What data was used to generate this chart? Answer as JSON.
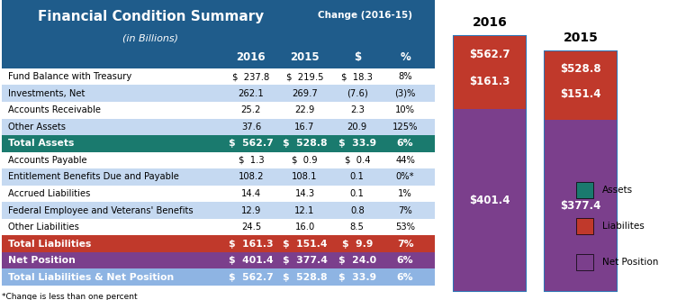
{
  "title": "Financial Condition Summary",
  "subtitle": "(in Billions)",
  "change_header": "Change (2016-15)",
  "columns": [
    "2016",
    "2015",
    "$",
    "%"
  ],
  "rows": [
    {
      "label": "Fund Balance with Treasury",
      "vals": [
        "$  237.8",
        "$  219.5",
        "$  18.3",
        "8%"
      ],
      "bold": false,
      "bg": "white"
    },
    {
      "label": "Investments, Net",
      "vals": [
        "262.1",
        "269.7",
        "(7.6)",
        "(3)%"
      ],
      "bold": false,
      "bg": "light"
    },
    {
      "label": "Accounts Receivable",
      "vals": [
        "25.2",
        "22.9",
        "2.3",
        "10%"
      ],
      "bold": false,
      "bg": "white"
    },
    {
      "label": "Other Assets",
      "vals": [
        "37.6",
        "16.7",
        "20.9",
        "125%"
      ],
      "bold": false,
      "bg": "light"
    },
    {
      "label": "Total Assets",
      "vals": [
        "$  562.7",
        "$  528.8",
        "$  33.9",
        "6%"
      ],
      "bold": true,
      "bg": "teal"
    },
    {
      "label": "Accounts Payable",
      "vals": [
        "$  1.3",
        "$  0.9",
        "$  0.4",
        "44%"
      ],
      "bold": false,
      "bg": "white"
    },
    {
      "label": "Entitlement Benefits Due and Payable",
      "vals": [
        "108.2",
        "108.1",
        "0.1",
        "0%*"
      ],
      "bold": false,
      "bg": "light"
    },
    {
      "label": "Accrued Liabilities",
      "vals": [
        "14.4",
        "14.3",
        "0.1",
        "1%"
      ],
      "bold": false,
      "bg": "white"
    },
    {
      "label": "Federal Employee and Veterans' Benefits",
      "vals": [
        "12.9",
        "12.1",
        "0.8",
        "7%"
      ],
      "bold": false,
      "bg": "light"
    },
    {
      "label": "Other Liabilities",
      "vals": [
        "24.5",
        "16.0",
        "8.5",
        "53%"
      ],
      "bold": false,
      "bg": "white"
    },
    {
      "label": "Total Liabilities",
      "vals": [
        "$  161.3",
        "$  151.4",
        "$  9.9",
        "7%"
      ],
      "bold": true,
      "bg": "red"
    },
    {
      "label": "Net Position",
      "vals": [
        "$  401.4",
        "$  377.4",
        "$  24.0",
        "6%"
      ],
      "bold": true,
      "bg": "purple"
    },
    {
      "label": "Total Liabilities & Net Position",
      "vals": [
        "$  562.7",
        "$  528.8",
        "$  33.9",
        "6%"
      ],
      "bold": true,
      "bg": "light_blue"
    }
  ],
  "footnote": "*Change is less than one percent",
  "header_bg": "#1F5C8B",
  "header_fg": "#FFFFFF",
  "teal_bg": "#1A7A6E",
  "teal_fg": "#FFFFFF",
  "red_bg": "#C0392B",
  "red_fg": "#FFFFFF",
  "purple_bg": "#7B3F8C",
  "purple_fg": "#FFFFFF",
  "light_bg": "#C5D9F1",
  "white_bg": "#FFFFFF",
  "light_blue_bg": "#8EB4E3",
  "light_blue_fg": "#FFFFFF",
  "bar_2016_assets": 562.7,
  "bar_2016_liabilities": 161.3,
  "bar_2016_netpos": 401.4,
  "bar_2015_assets": 528.8,
  "bar_2015_liabilities": 151.4,
  "bar_2015_netpos": 377.4,
  "bar_color_assets": "#1A7A6E",
  "bar_color_liabilities": "#C0392B",
  "bar_color_netpos": "#7B3F8C",
  "bar_border_color": "#2E75B6"
}
